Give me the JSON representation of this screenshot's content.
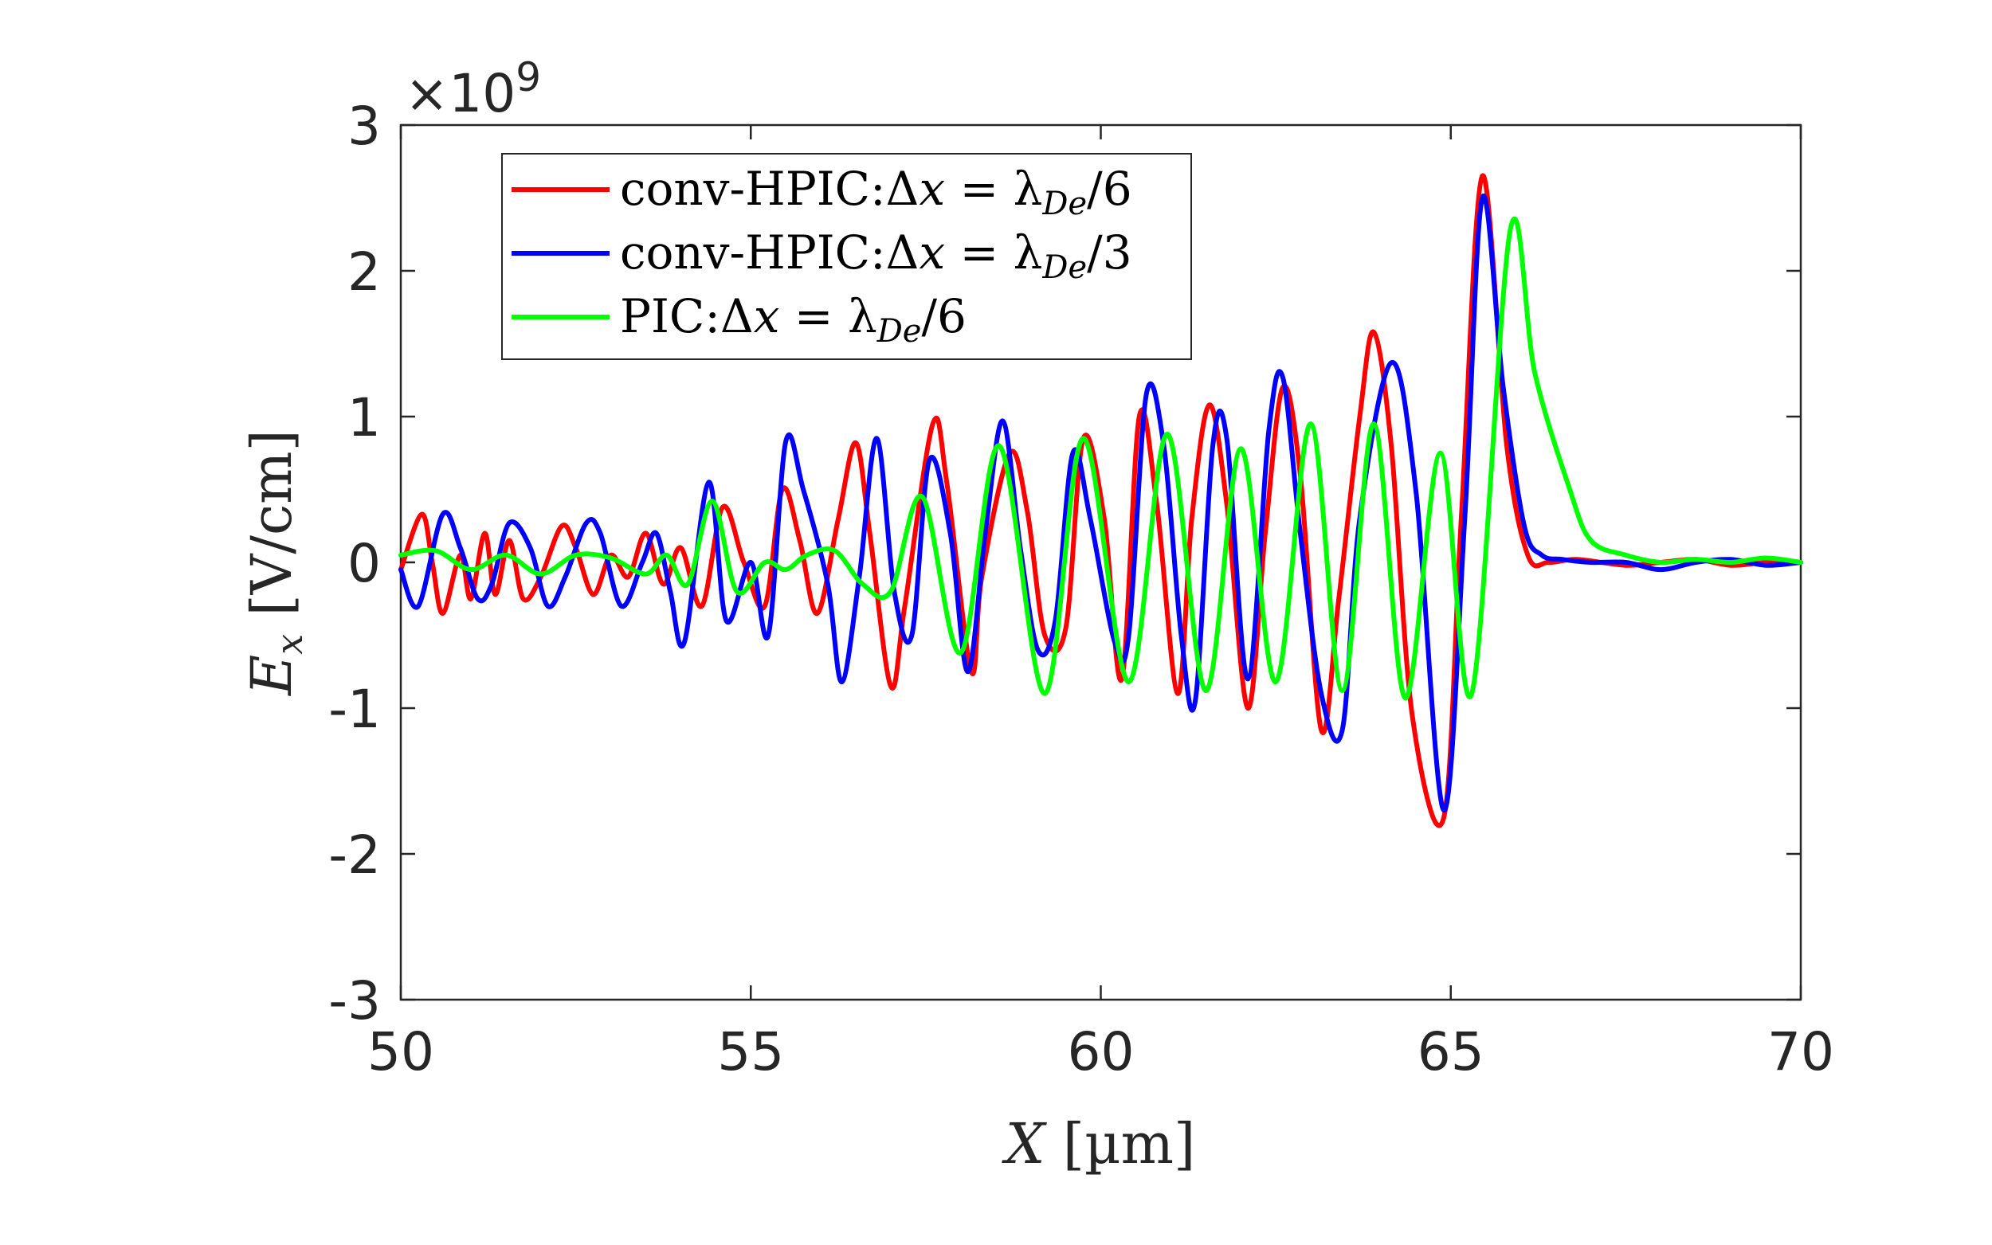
{
  "chart_data": {
    "type": "line",
    "title": "",
    "xlabel_var": "X",
    "xlabel_unit": "[µm]",
    "ylabel_var": "E",
    "ylabel_sub": "x",
    "ylabel_unit": "[V/cm]",
    "y_multiplier": "×10",
    "y_multiplier_exp": "9",
    "xlim": [
      50,
      70
    ],
    "ylim": [
      -3,
      3
    ],
    "xticks": [
      50,
      55,
      60,
      65,
      70
    ],
    "yticks": [
      -3,
      -2,
      -1,
      0,
      1,
      2,
      3
    ],
    "xtick_labels": [
      "50",
      "55",
      "60",
      "65",
      "70"
    ],
    "ytick_labels": [
      "-3",
      "-2",
      "-1",
      "0",
      "1",
      "2",
      "3"
    ],
    "grid": false,
    "legend_position": "top-left",
    "legend": [
      {
        "prefix": "conv-HPIC:Δ",
        "var": "x",
        "eq": " = λ",
        "sub": "De",
        "suffix": "/6",
        "color": "#ff0000"
      },
      {
        "prefix": "conv-HPIC:Δ",
        "var": "x",
        "eq": " = λ",
        "sub": "De",
        "suffix": "/3",
        "color": "#0000ff"
      },
      {
        "prefix": "PIC:Δ",
        "var": "x",
        "eq": " = λ",
        "sub": "De",
        "suffix": "/6",
        "color": "#00ff00"
      }
    ],
    "series": [
      {
        "name": "conv-HPIC:Δx = λDe/6",
        "color": "#ff0000",
        "x": [
          50,
          50.3,
          50.45,
          50.6,
          50.85,
          51.0,
          51.2,
          51.35,
          51.55,
          51.75,
          52.0,
          52.3,
          52.5,
          52.75,
          53.0,
          53.25,
          53.5,
          53.75,
          54.0,
          54.3,
          54.6,
          54.9,
          55.2,
          55.45,
          55.7,
          55.95,
          56.25,
          56.5,
          56.7,
          57.0,
          57.2,
          57.6,
          57.8,
          58.15,
          58.3,
          58.7,
          58.95,
          59.2,
          59.5,
          59.75,
          60.05,
          60.3,
          60.55,
          60.8,
          61.1,
          61.3,
          61.55,
          61.8,
          62.1,
          62.35,
          62.6,
          62.85,
          63.15,
          63.4,
          63.7,
          63.9,
          64.15,
          64.45,
          64.9,
          65.15,
          65.45,
          65.8,
          66.1,
          66.4,
          66.8,
          67.5,
          68.0,
          68.5,
          69.0,
          69.5,
          70.0
        ],
        "y": [
          -0.05,
          0.33,
          0.0,
          -0.35,
          0.05,
          -0.25,
          0.2,
          -0.22,
          0.15,
          -0.25,
          -0.1,
          0.25,
          0.1,
          -0.22,
          0.05,
          -0.1,
          0.2,
          -0.15,
          0.1,
          -0.3,
          0.38,
          0.0,
          -0.3,
          0.5,
          0.15,
          -0.35,
          0.3,
          0.82,
          0.2,
          -0.85,
          -0.3,
          0.95,
          0.55,
          -0.75,
          -0.1,
          0.75,
          0.35,
          -0.5,
          -0.45,
          0.85,
          0.3,
          -0.8,
          1.0,
          0.4,
          -0.9,
          0.3,
          1.08,
          0.4,
          -1.0,
          0.2,
          1.2,
          0.6,
          -1.15,
          -0.25,
          1.0,
          1.58,
          0.8,
          -1.05,
          -1.75,
          0.3,
          2.65,
          0.8,
          0.05,
          0.0,
          0.02,
          -0.02,
          0.0,
          0.02,
          -0.02,
          0.0,
          0.0
        ]
      },
      {
        "name": "conv-HPIC:Δx = λDe/3",
        "color": "#0000ff",
        "x": [
          50,
          50.25,
          50.6,
          50.85,
          51.1,
          51.3,
          51.55,
          51.85,
          52.1,
          52.35,
          52.65,
          52.85,
          53.15,
          53.45,
          53.65,
          53.85,
          54.05,
          54.4,
          54.65,
          55.0,
          55.25,
          55.5,
          55.75,
          56.1,
          56.3,
          56.55,
          56.8,
          57.05,
          57.3,
          57.55,
          57.85,
          58.1,
          58.35,
          58.6,
          58.85,
          59.1,
          59.35,
          59.6,
          59.85,
          60.2,
          60.4,
          60.65,
          60.9,
          61.15,
          61.35,
          61.6,
          61.8,
          62.1,
          62.4,
          62.6,
          62.85,
          63.15,
          63.45,
          63.7,
          64.15,
          64.5,
          64.9,
          65.2,
          65.45,
          65.75,
          66.05,
          66.3,
          66.6,
          67.0,
          67.5,
          68.0,
          68.5,
          69.0,
          69.5,
          70.0
        ],
        "y": [
          -0.05,
          -0.3,
          0.33,
          0.1,
          -0.25,
          -0.15,
          0.27,
          0.1,
          -0.3,
          -0.1,
          0.27,
          0.2,
          -0.3,
          0.0,
          0.2,
          -0.2,
          -0.55,
          0.55,
          -0.4,
          0.0,
          -0.5,
          0.83,
          0.5,
          -0.15,
          -0.82,
          -0.1,
          0.85,
          -0.2,
          -0.5,
          0.7,
          0.2,
          -0.75,
          0.2,
          0.97,
          0.1,
          -0.6,
          -0.4,
          0.75,
          0.3,
          -0.55,
          -0.5,
          1.15,
          0.8,
          -0.5,
          -0.95,
          0.8,
          0.85,
          -0.8,
          0.9,
          1.27,
          0.2,
          -0.9,
          -1.15,
          0.3,
          1.37,
          0.5,
          -1.7,
          0.3,
          2.5,
          1.2,
          0.25,
          0.05,
          0.02,
          0.0,
          0.0,
          -0.05,
          0.0,
          0.02,
          -0.02,
          0.0
        ]
      },
      {
        "name": "PIC:Δx = λDe/6",
        "color": "#00ff00",
        "x": [
          50,
          50.5,
          51.0,
          51.5,
          52.0,
          52.5,
          53.0,
          53.5,
          53.8,
          54.1,
          54.45,
          54.8,
          55.2,
          55.5,
          55.8,
          56.2,
          56.6,
          57.0,
          57.45,
          58.0,
          58.55,
          59.2,
          59.75,
          60.4,
          60.95,
          61.5,
          62.0,
          62.5,
          63.0,
          63.45,
          63.9,
          64.35,
          64.85,
          65.3,
          65.85,
          66.2,
          66.7,
          67.0,
          67.5,
          68.0,
          68.5,
          69.0,
          69.5,
          70.0
        ],
        "y": [
          0.05,
          0.08,
          -0.05,
          0.05,
          -0.08,
          0.05,
          0.03,
          -0.08,
          0.05,
          -0.15,
          0.42,
          -0.2,
          0.0,
          -0.05,
          0.05,
          0.08,
          -0.15,
          -0.2,
          0.45,
          -0.62,
          0.8,
          -0.9,
          0.85,
          -0.82,
          0.88,
          -0.88,
          0.78,
          -0.82,
          0.95,
          -0.88,
          0.95,
          -0.93,
          0.75,
          -0.9,
          2.28,
          1.3,
          0.5,
          0.15,
          0.05,
          0.0,
          0.02,
          0.0,
          0.03,
          0.0
        ]
      }
    ]
  }
}
